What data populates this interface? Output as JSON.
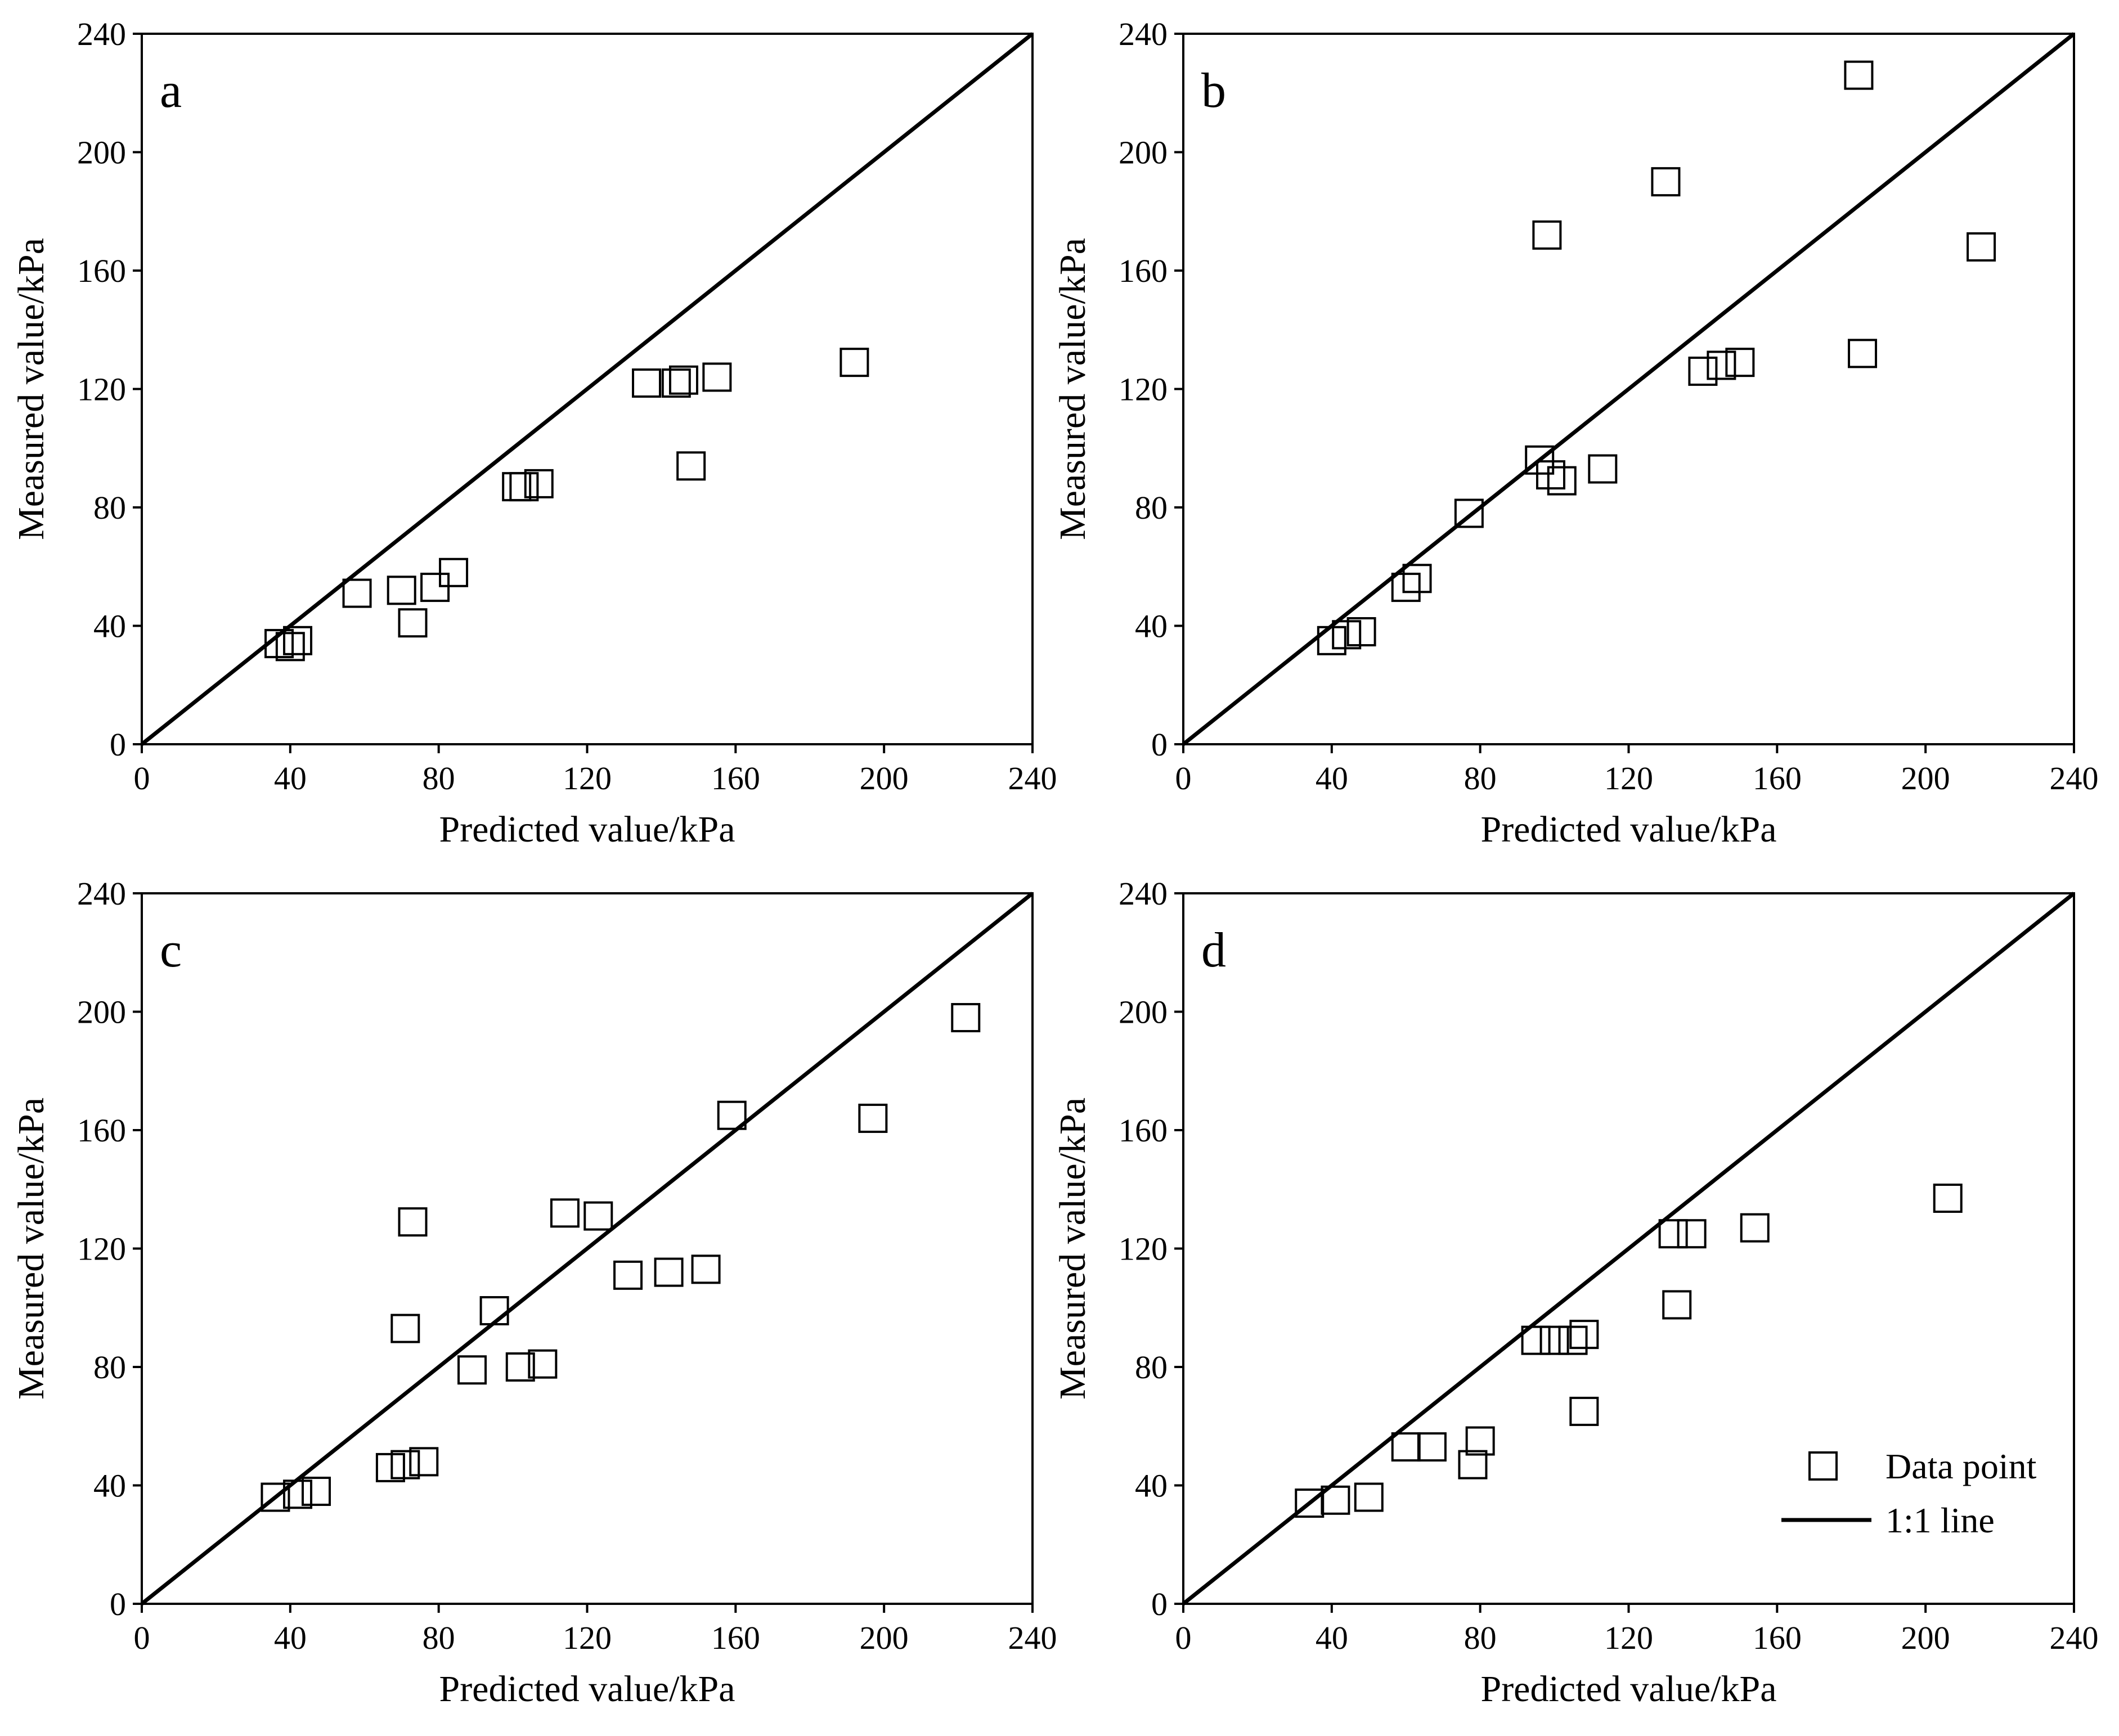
{
  "chart_data": [
    {
      "type": "scatter",
      "panel_label": "a",
      "xlabel": "Predicted value/kPa",
      "ylabel": "Measured value/kPa",
      "xlim": [
        0,
        240
      ],
      "ylim": [
        0,
        240
      ],
      "xticks": [
        "0",
        "40",
        "80",
        "120",
        "160",
        "200",
        "240"
      ],
      "yticks": [
        "0",
        "40",
        "80",
        "120",
        "160",
        "200",
        "240"
      ],
      "grid": false,
      "reference_line": "1:1",
      "series": [
        {
          "name": "Data point",
          "marker": "open-square",
          "points": [
            [
              37,
              34
            ],
            [
              42,
              35
            ],
            [
              40,
              33
            ],
            [
              58,
              51
            ],
            [
              70,
              52
            ],
            [
              73,
              41
            ],
            [
              79,
              53
            ],
            [
              84,
              58
            ],
            [
              101,
              87
            ],
            [
              103,
              87
            ],
            [
              107,
              88
            ],
            [
              136,
              122
            ],
            [
              144,
              122
            ],
            [
              146,
              123
            ],
            [
              155,
              124
            ],
            [
              148,
              94
            ],
            [
              192,
              129
            ]
          ]
        }
      ]
    },
    {
      "type": "scatter",
      "panel_label": "b",
      "xlabel": "Predicted value/kPa",
      "ylabel": "Measured value/kPa",
      "xlim": [
        0,
        240
      ],
      "ylim": [
        0,
        240
      ],
      "xticks": [
        "0",
        "40",
        "80",
        "120",
        "160",
        "200",
        "240"
      ],
      "yticks": [
        "0",
        "40",
        "80",
        "120",
        "160",
        "200",
        "240"
      ],
      "grid": false,
      "reference_line": "1:1",
      "series": [
        {
          "name": "Data point",
          "marker": "open-square",
          "points": [
            [
              40,
              35
            ],
            [
              44,
              37
            ],
            [
              48,
              38
            ],
            [
              60,
              53
            ],
            [
              63,
              56
            ],
            [
              77,
              78
            ],
            [
              96,
              96
            ],
            [
              99,
              91
            ],
            [
              102,
              89
            ],
            [
              113,
              93
            ],
            [
              98,
              172
            ],
            [
              130,
              190
            ],
            [
              140,
              126
            ],
            [
              145,
              128
            ],
            [
              150,
              129
            ],
            [
              182,
              226
            ],
            [
              183,
              132
            ],
            [
              215,
              168
            ]
          ]
        }
      ]
    },
    {
      "type": "scatter",
      "panel_label": "c",
      "xlabel": "Predicted value/kPa",
      "ylabel": "Measured value/kPa",
      "xlim": [
        0,
        240
      ],
      "ylim": [
        0,
        240
      ],
      "xticks": [
        "0",
        "40",
        "80",
        "120",
        "160",
        "200",
        "240"
      ],
      "yticks": [
        "0",
        "40",
        "80",
        "120",
        "160",
        "200",
        "240"
      ],
      "grid": false,
      "reference_line": "1:1",
      "series": [
        {
          "name": "Data point",
          "marker": "open-square",
          "points": [
            [
              36,
              36
            ],
            [
              42,
              37
            ],
            [
              47,
              38
            ],
            [
              67,
              46
            ],
            [
              71,
              47
            ],
            [
              76,
              48
            ],
            [
              71,
              93
            ],
            [
              73,
              129
            ],
            [
              89,
              79
            ],
            [
              95,
              99
            ],
            [
              102,
              80
            ],
            [
              108,
              81
            ],
            [
              114,
              132
            ],
            [
              123,
              131
            ],
            [
              131,
              111
            ],
            [
              142,
              112
            ],
            [
              152,
              113
            ],
            [
              159,
              165
            ],
            [
              197,
              164
            ],
            [
              222,
              198
            ]
          ]
        }
      ]
    },
    {
      "type": "scatter",
      "panel_label": "d",
      "xlabel": "Predicted value/kPa",
      "ylabel": "Measured value/kPa",
      "xlim": [
        0,
        240
      ],
      "ylim": [
        0,
        240
      ],
      "xticks": [
        "0",
        "40",
        "80",
        "120",
        "160",
        "200",
        "240"
      ],
      "yticks": [
        "0",
        "40",
        "80",
        "120",
        "160",
        "200",
        "240"
      ],
      "grid": false,
      "reference_line": "1:1",
      "legend_position": "bottom-right",
      "legend": [
        "Data point",
        "1:1 line"
      ],
      "series": [
        {
          "name": "Data point",
          "marker": "open-square",
          "points": [
            [
              34,
              34
            ],
            [
              41,
              35
            ],
            [
              50,
              36
            ],
            [
              60,
              53
            ],
            [
              67,
              53
            ],
            [
              78,
              47
            ],
            [
              80,
              55
            ],
            [
              95,
              89
            ],
            [
              100,
              89
            ],
            [
              105,
              89
            ],
            [
              108,
              91
            ],
            [
              108,
              65
            ],
            [
              132,
              125
            ],
            [
              137,
              125
            ],
            [
              133,
              101
            ],
            [
              154,
              127
            ],
            [
              206,
              137
            ]
          ]
        }
      ]
    }
  ]
}
